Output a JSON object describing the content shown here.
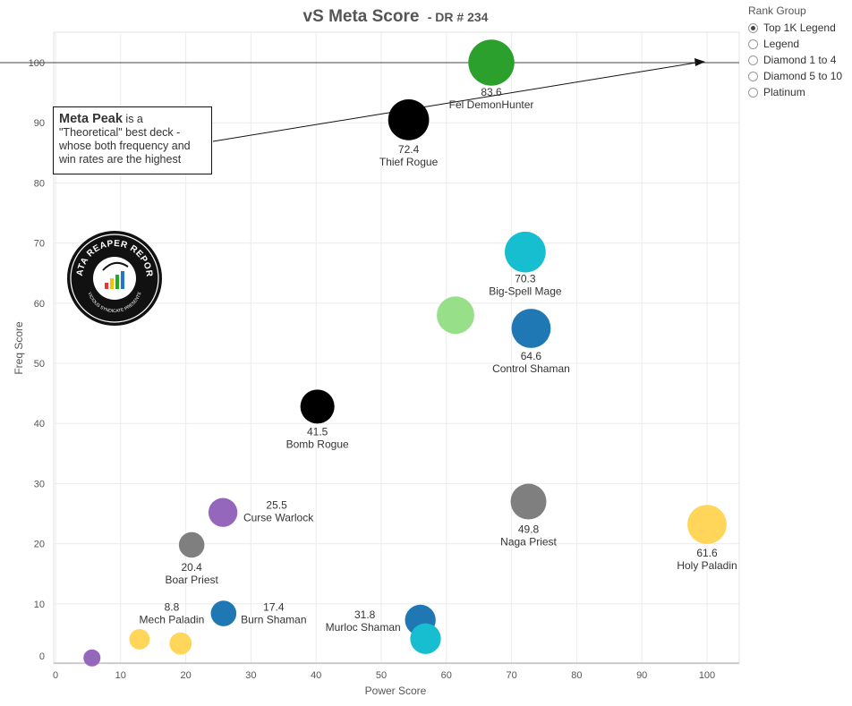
{
  "title": {
    "main": "vS Meta Score",
    "sub": "- DR # 234"
  },
  "legend": {
    "title": "Rank Group",
    "items": [
      {
        "label": "Top 1K Legend",
        "selected": true
      },
      {
        "label": "Legend",
        "selected": false
      },
      {
        "label": "Diamond 1 to 4",
        "selected": false
      },
      {
        "label": "Diamond 5 to 10",
        "selected": false
      },
      {
        "label": "Platinum",
        "selected": false
      }
    ]
  },
  "annotation": {
    "bold": "Meta Peak",
    "text_1": " is a",
    "text_2": "\"Theoretical\" best deck -",
    "text_3": "whose both frequency and",
    "text_4": "win rates are the highest"
  },
  "logo": {
    "text_top": "DATA REAPER REPORT",
    "text_bottom": "VICIOUS SYNDICATE PRESENTS"
  },
  "chart_data": {
    "type": "scatter",
    "title": "vS Meta Score - DR # 234",
    "xlabel": "Power Score",
    "ylabel": "Freq Score",
    "xlim": [
      0,
      105
    ],
    "ylim": [
      -1,
      105
    ],
    "xticks": [
      0,
      10,
      20,
      30,
      40,
      50,
      60,
      70,
      80,
      90,
      100
    ],
    "yticks": [
      0,
      10,
      20,
      30,
      40,
      50,
      60,
      70,
      80,
      90,
      100
    ],
    "grid": true,
    "reference_line_y": 100,
    "points": [
      {
        "name": "Fel DemonHunter",
        "score": "83.6",
        "x": 66.9,
        "y": 100,
        "color": "#2ca02c",
        "size": 27
      },
      {
        "name": "Thief Rogue",
        "score": "72.4",
        "x": 54.2,
        "y": 90.5,
        "color": "#000000",
        "size": 24
      },
      {
        "name": "Big-Spell Mage",
        "score": "70.3",
        "x": 72.1,
        "y": 68.5,
        "color": "#17becf",
        "size": 24
      },
      {
        "name": "",
        "score": "",
        "x": 61.4,
        "y": 58,
        "color": "#98df8a",
        "size": 22
      },
      {
        "name": "Control Shaman",
        "score": "64.6",
        "x": 73.0,
        "y": 55.8,
        "color": "#1f77b4",
        "size": 23
      },
      {
        "name": "Bomb Rogue",
        "score": "41.5",
        "x": 40.2,
        "y": 42.8,
        "color": "#000000",
        "size": 20
      },
      {
        "name": "Naga Priest",
        "score": "49.8",
        "x": 72.6,
        "y": 27,
        "color": "#7f7f7f",
        "size": 21
      },
      {
        "name": "Curse Warlock",
        "score": "25.5",
        "x": 25.7,
        "y": 25.2,
        "color": "#9467bd",
        "size": 17
      },
      {
        "name": "Holy Paladin",
        "score": "61.6",
        "x": 100,
        "y": 23.2,
        "color": "#ffd55a",
        "size": 23
      },
      {
        "name": "Boar Priest",
        "score": "20.4",
        "x": 20.9,
        "y": 19.8,
        "color": "#7f7f7f",
        "size": 15
      },
      {
        "name": "Burn Shaman",
        "score": "17.4",
        "x": 25.8,
        "y": 8.4,
        "color": "#1f77b4",
        "size": 15
      },
      {
        "name": "Murloc Shaman",
        "score": "31.8",
        "x": 56.0,
        "y": 7.3,
        "color": "#1f77b4",
        "size": 18
      },
      {
        "name": "",
        "score": "",
        "x": 56.8,
        "y": 4.2,
        "color": "#17becf",
        "size": 18
      },
      {
        "name": "Mech Paladin",
        "score": "8.8",
        "x": 12.9,
        "y": 4.1,
        "color": "#ffd55a",
        "size": 12
      },
      {
        "name": "",
        "score": "",
        "x": 19.2,
        "y": 3.4,
        "color": "#ffd55a",
        "size": 13
      },
      {
        "name": "",
        "score": "",
        "x": 5.6,
        "y": 1.0,
        "color": "#9467bd",
        "size": 10
      }
    ]
  }
}
